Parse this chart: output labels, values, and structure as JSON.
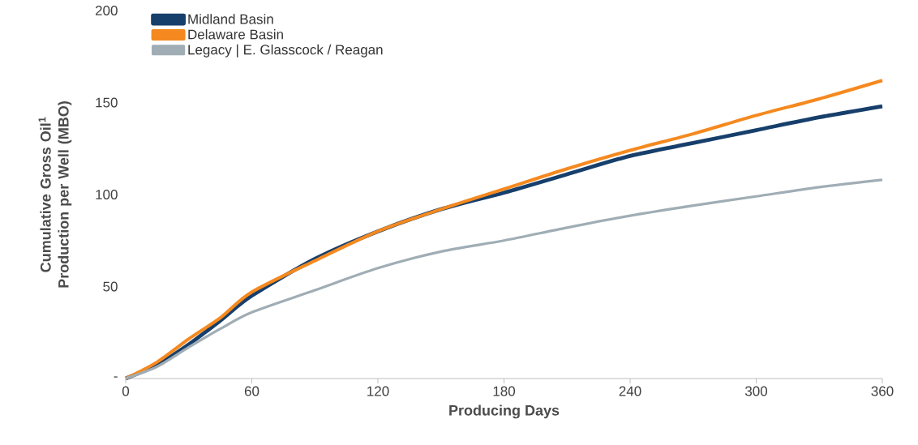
{
  "chart_data": {
    "type": "line",
    "xlabel": "Producing Days",
    "ylabel": "Cumulative Gross Oil$^{1}$ Production per Well (MBO)",
    "xlim": [
      0,
      360
    ],
    "xticks": [
      0,
      60,
      120,
      180,
      240,
      300,
      360
    ],
    "ylim": [
      0,
      200
    ],
    "yticks": [
      {
        "value": 0,
        "label": "-"
      },
      50,
      100,
      150,
      200
    ],
    "legend": "top left",
    "x": [
      0,
      15,
      30,
      45,
      60,
      90,
      120,
      150,
      180,
      210,
      240,
      270,
      300,
      330,
      360
    ],
    "series": [
      {
        "name": "Midland Basin",
        "color": "#173f6b",
        "values": [
          0,
          7.5,
          18.5,
          31.5,
          45,
          65,
          80,
          92,
          101,
          111,
          121,
          128,
          135,
          142,
          148
        ]
      },
      {
        "name": "Delaware Basin",
        "color": "#f5891f",
        "values": [
          0,
          9,
          21.5,
          33,
          47,
          64,
          80,
          92,
          103,
          114,
          124,
          133,
          143,
          152,
          162
        ]
      },
      {
        "name": "Legacy | E. Glasscock / Reagan",
        "color": "#a0adb5",
        "values": [
          0,
          6.5,
          17,
          27,
          36,
          48,
          60,
          69,
          75,
          82,
          88.5,
          94,
          99,
          104,
          108
        ]
      }
    ]
  }
}
